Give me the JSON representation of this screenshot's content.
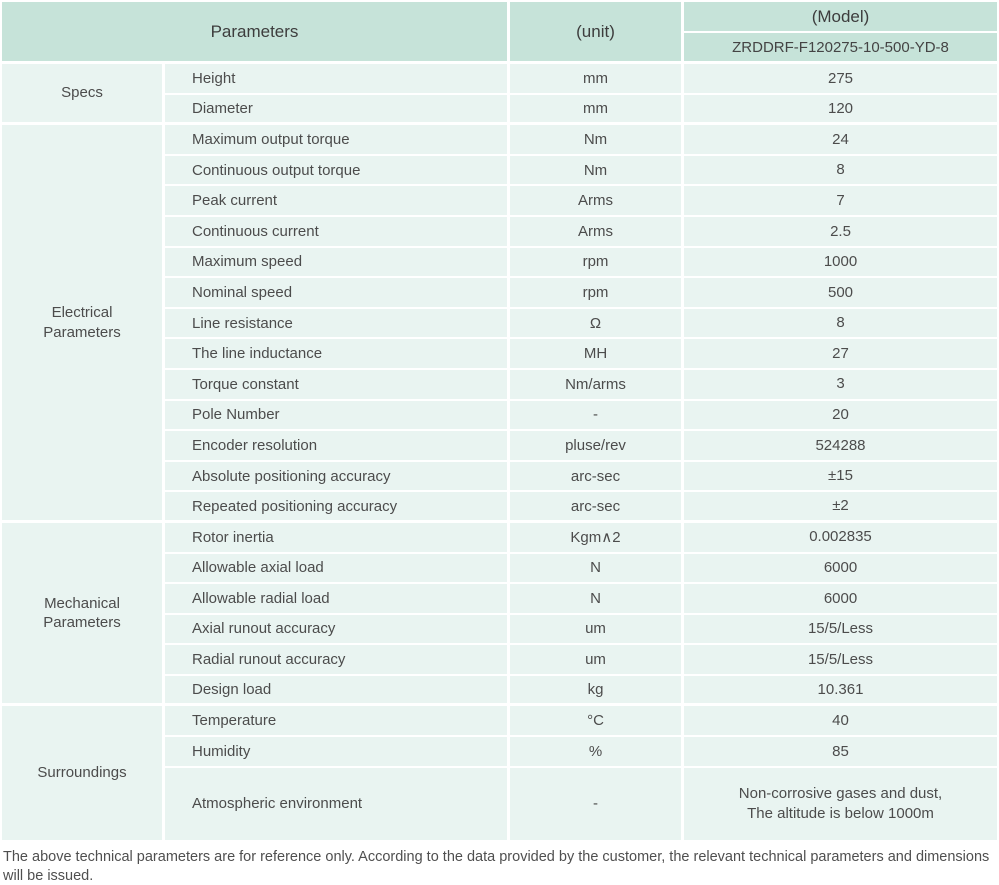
{
  "table": {
    "header": {
      "parameters_label": "Parameters",
      "unit_label": "(unit)",
      "model_label": "(Model)",
      "model_number": "ZRDDRF-F120275-10-500-YD-8"
    },
    "sections": [
      {
        "label": "Specs",
        "rows": [
          {
            "param": "Height",
            "unit": "mm",
            "value": "275"
          },
          {
            "param": "Diameter",
            "unit": "mm",
            "value": "120"
          }
        ]
      },
      {
        "label": "Electrical Parameters",
        "rows": [
          {
            "param": "Maximum output torque",
            "unit": "Nm",
            "value": "24"
          },
          {
            "param": "Continuous output torque",
            "unit": "Nm",
            "value": "8"
          },
          {
            "param": "Peak current",
            "unit": "Arms",
            "value": "7"
          },
          {
            "param": "Continuous current",
            "unit": "Arms",
            "value": "2.5"
          },
          {
            "param": "Maximum speed",
            "unit": "rpm",
            "value": "1000"
          },
          {
            "param": "Nominal speed",
            "unit": "rpm",
            "value": "500"
          },
          {
            "param": "Line resistance",
            "unit": "Ω",
            "value": "8"
          },
          {
            "param": "The line inductance",
            "unit": "MH",
            "value": "27"
          },
          {
            "param": "Torque constant",
            "unit": "Nm/arms",
            "value": "3"
          },
          {
            "param": "Pole Number",
            "unit": "-",
            "value": "20"
          },
          {
            "param": "Encoder resolution",
            "unit": "pluse/rev",
            "value": "524288"
          },
          {
            "param": "Absolute positioning accuracy",
            "unit": "arc-sec",
            "value": "±15"
          },
          {
            "param": "Repeated positioning accuracy",
            "unit": "arc-sec",
            "value": "±2"
          }
        ]
      },
      {
        "label": "Mechanical Parameters",
        "rows": [
          {
            "param": "Rotor inertia",
            "unit": "Kgm∧2",
            "value": "0.002835"
          },
          {
            "param": "Allowable axial load",
            "unit": "N",
            "value": "6000"
          },
          {
            "param": "Allowable radial load",
            "unit": "N",
            "value": "6000"
          },
          {
            "param": "Axial runout accuracy",
            "unit": "um",
            "value": "15/5/Less"
          },
          {
            "param": "Radial runout accuracy",
            "unit": "um",
            "value": "15/5/Less"
          },
          {
            "param": "Design load",
            "unit": "kg",
            "value": "10.361"
          }
        ]
      },
      {
        "label": "Surroundings",
        "rows": [
          {
            "param": "Temperature",
            "unit": "°C",
            "value": "40"
          },
          {
            "param": "Humidity",
            "unit": "%",
            "value": "85"
          },
          {
            "param": "Atmospheric environment",
            "unit": "-",
            "value": "Non-corrosive gases and dust,\nThe altitude is below 1000m",
            "tall": true
          }
        ]
      }
    ]
  },
  "footer": {
    "note": "The above technical parameters are for reference only. According to the data provided by the customer, the relevant technical parameters and dimensions will be issued."
  },
  "colors": {
    "header_bg": "#c6e3d9",
    "cell_bg": "#e9f4f1",
    "separator": "#ffffff",
    "header_text": "#3d3d3d",
    "body_text": "#4c4c4c"
  }
}
